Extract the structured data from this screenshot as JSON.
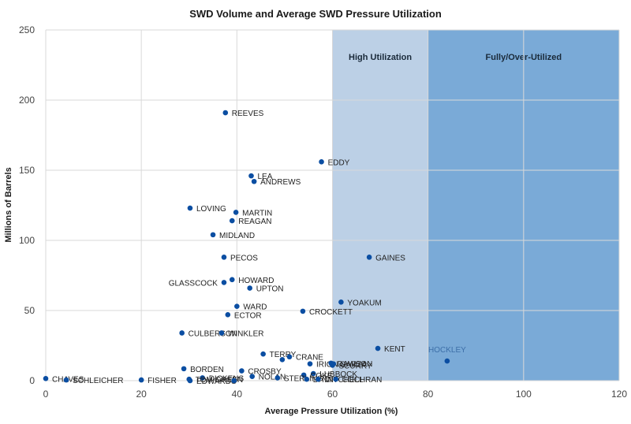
{
  "chart_data": {
    "type": "scatter",
    "title": "SWD Volume and Average SWD Pressure Utilization",
    "xlabel": "Average Pressure Utilization (%)",
    "ylabel": "Millions of Barrels",
    "xlim": [
      0,
      120
    ],
    "ylim": [
      0,
      250
    ],
    "xticks": [
      0,
      20,
      40,
      60,
      80,
      100,
      120
    ],
    "yticks": [
      0,
      50,
      100,
      150,
      200,
      250
    ],
    "grid": true,
    "point_color": "#0b4ea2",
    "zones": [
      {
        "label": "High Utilization",
        "from": 60,
        "to": 80,
        "color": "#bcd0e6"
      },
      {
        "label": "Fully/Over-Utilized",
        "from": 80,
        "to": 120,
        "color": "#7aaad7"
      }
    ],
    "points": [
      {
        "label": "REEVES",
        "x": 37.6,
        "y": 191
      },
      {
        "label": "EDDY",
        "x": 57.7,
        "y": 156
      },
      {
        "label": "LEA",
        "x": 43.0,
        "y": 146
      },
      {
        "label": "ANDREWS",
        "x": 43.6,
        "y": 142
      },
      {
        "label": "LOVING",
        "x": 30.2,
        "y": 123
      },
      {
        "label": "MARTIN",
        "x": 39.8,
        "y": 120
      },
      {
        "label": "REAGAN",
        "x": 39.0,
        "y": 114
      },
      {
        "label": "MIDLAND",
        "x": 35.0,
        "y": 104
      },
      {
        "label": "PECOS",
        "x": 37.3,
        "y": 88
      },
      {
        "label": "GAINES",
        "x": 67.7,
        "y": 88
      },
      {
        "label": "HOWARD",
        "x": 39.0,
        "y": 72
      },
      {
        "label": "GLASSCOCK",
        "x": 37.3,
        "y": 70
      },
      {
        "label": "UPTON",
        "x": 42.7,
        "y": 66
      },
      {
        "label": "YOAKUM",
        "x": 61.8,
        "y": 56
      },
      {
        "label": "WARD",
        "x": 40.0,
        "y": 53
      },
      {
        "label": "CROCKETT",
        "x": 53.8,
        "y": 49.5
      },
      {
        "label": "ECTOR",
        "x": 38.1,
        "y": 47
      },
      {
        "label": "CULBERSON",
        "x": 28.5,
        "y": 34
      },
      {
        "label": "WINKLER",
        "x": 36.8,
        "y": 34
      },
      {
        "label": "KENT",
        "x": 69.5,
        "y": 23
      },
      {
        "label": "TERRY",
        "x": 45.5,
        "y": 19
      },
      {
        "label": "CRANE",
        "x": 51.0,
        "y": 17
      },
      {
        "label": "",
        "x": 49.5,
        "y": 15
      },
      {
        "label": "HOCKLEY",
        "x": 84.0,
        "y": 14
      },
      {
        "label": "IRION",
        "x": 55.3,
        "y": 12
      },
      {
        "label": "DAWSON",
        "x": 59.7,
        "y": 12.5
      },
      {
        "label": "GARZA",
        "x": 60.2,
        "y": 12
      },
      {
        "label": "SCURRY",
        "x": 60.0,
        "y": 11
      },
      {
        "label": "BORDEN",
        "x": 28.9,
        "y": 8.5
      },
      {
        "label": "CROSBY",
        "x": 41.0,
        "y": 7
      },
      {
        "label": "LUBBOCK",
        "x": 56.0,
        "y": 5
      },
      {
        "label": "COKE",
        "x": 54.0,
        "y": 4
      },
      {
        "label": "NOLAN",
        "x": 43.2,
        "y": 3
      },
      {
        "label": "DICKENS",
        "x": 32.8,
        "y": 2
      },
      {
        "label": "STERLING",
        "x": 48.5,
        "y": 2
      },
      {
        "label": "CHAVES",
        "x": 0.0,
        "y": 1.5
      },
      {
        "label": "TOM GREEN",
        "x": 30.0,
        "y": 1
      },
      {
        "label": "LYNN",
        "x": 54.6,
        "y": 1
      },
      {
        "label": "MITCHELL",
        "x": 57.0,
        "y": 1
      },
      {
        "label": "COCHRAN",
        "x": 60.7,
        "y": 1
      },
      {
        "label": "SCHLEICHER",
        "x": 4.3,
        "y": 0.5
      },
      {
        "label": "FISHER",
        "x": 20.0,
        "y": 0.5
      },
      {
        "label": "EDWARDS",
        "x": 30.2,
        "y": 0
      },
      {
        "label": "",
        "x": 39.4,
        "y": 0
      }
    ]
  }
}
